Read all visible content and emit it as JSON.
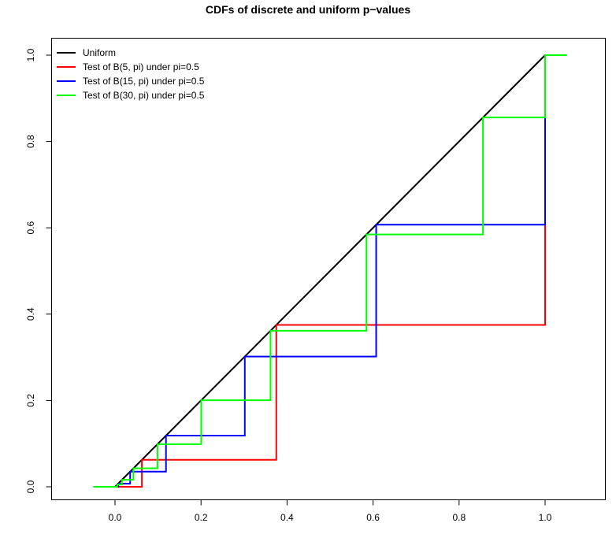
{
  "chart_data": {
    "type": "line",
    "title": "CDFs of discrete and uniform p−values",
    "xlabel": "",
    "ylabel": "",
    "xlim": [
      -0.05,
      1.05
    ],
    "ylim": [
      0,
      1
    ],
    "x_ticks": [
      0.0,
      0.2,
      0.4,
      0.6,
      0.8,
      1.0
    ],
    "x_tick_labels": [
      "0.0",
      "0.2",
      "0.4",
      "0.6",
      "0.8",
      "1.0"
    ],
    "y_ticks": [
      0.0,
      0.2,
      0.4,
      0.6,
      0.8,
      1.0
    ],
    "y_tick_labels": [
      "0.0",
      "0.2",
      "0.4",
      "0.6",
      "0.8",
      "1.0"
    ],
    "grid": false,
    "legend_position": "top-left",
    "series": [
      {
        "name": "Uniform",
        "color": "#000000",
        "step": false,
        "x": [
          0.0,
          1.0
        ],
        "y": [
          0.0,
          1.0
        ]
      },
      {
        "name": "Test of B(5, pi) under pi=0.5",
        "color": "#ff0000",
        "step": true,
        "x": [
          -0.05,
          0.0625,
          0.375,
          1.0,
          1.05
        ],
        "y": [
          0.0,
          0.0625,
          0.375,
          1.0,
          1.0
        ]
      },
      {
        "name": "Test of B(15, pi) under pi=0.5",
        "color": "#0000ff",
        "step": true,
        "x": [
          -0.05,
          0.0074,
          0.0352,
          0.1185,
          0.3018,
          0.6072,
          1.0,
          1.05
        ],
        "y": [
          0.0,
          0.0074,
          0.0352,
          0.1185,
          0.3018,
          0.6072,
          1.0,
          1.0
        ]
      },
      {
        "name": "Test of B(30, pi) under pi=0.5",
        "color": "#00ff00",
        "step": true,
        "x": [
          -0.05,
          0.0052,
          0.0161,
          0.0428,
          0.0987,
          0.2005,
          0.3616,
          0.5847,
          0.8555,
          1.0,
          1.05
        ],
        "y": [
          0.0,
          0.0052,
          0.0161,
          0.0428,
          0.0987,
          0.2005,
          0.3616,
          0.5847,
          0.8555,
          1.0,
          1.0
        ]
      }
    ]
  }
}
